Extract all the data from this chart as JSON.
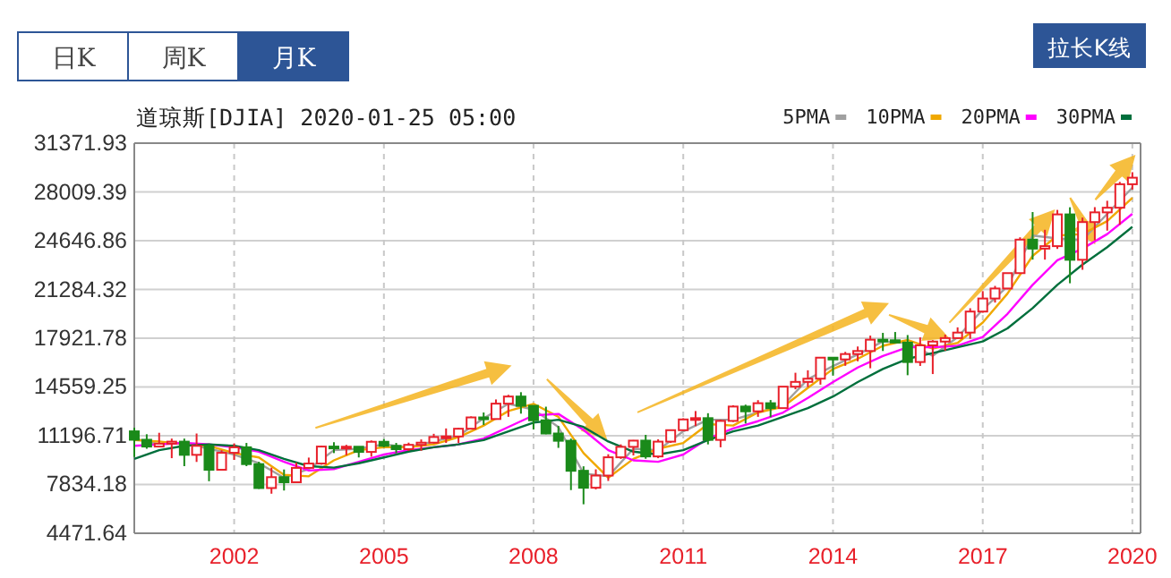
{
  "chart_data": {
    "type": "candlestick",
    "title": "道琼斯[DJIA] 2020-01-25 05:00",
    "annotations": [
      "日K",
      "周K",
      "月K",
      "拉长K线"
    ],
    "x": [
      "2000-01",
      "2000-04",
      "2000-07",
      "2000-10",
      "2001-01",
      "2001-04",
      "2001-07",
      "2001-10",
      "2002-01",
      "2002-04",
      "2002-07",
      "2002-10",
      "2003-01",
      "2003-04",
      "2003-07",
      "2003-10",
      "2004-01",
      "2004-04",
      "2004-07",
      "2004-10",
      "2005-01",
      "2005-04",
      "2005-07",
      "2005-10",
      "2006-01",
      "2006-04",
      "2006-07",
      "2006-10",
      "2007-01",
      "2007-04",
      "2007-07",
      "2007-10",
      "2008-01",
      "2008-04",
      "2008-07",
      "2008-10",
      "2009-01",
      "2009-04",
      "2009-07",
      "2009-10",
      "2010-01",
      "2010-04",
      "2010-07",
      "2010-10",
      "2011-01",
      "2011-04",
      "2011-07",
      "2011-10",
      "2012-01",
      "2012-04",
      "2012-07",
      "2012-10",
      "2013-01",
      "2013-04",
      "2013-07",
      "2013-10",
      "2014-01",
      "2014-04",
      "2014-07",
      "2014-10",
      "2015-01",
      "2015-04",
      "2015-07",
      "2015-10",
      "2016-01",
      "2016-04",
      "2016-07",
      "2016-10",
      "2017-01",
      "2017-04",
      "2017-07",
      "2017-10",
      "2018-01",
      "2018-04",
      "2018-07",
      "2018-10",
      "2019-01",
      "2019-04",
      "2019-07",
      "2019-10",
      "2020-01"
    ],
    "ohlc": [
      [
        11500,
        11750,
        9730,
        10920
      ],
      [
        10920,
        11300,
        10300,
        10450
      ],
      [
        10450,
        11400,
        10400,
        10650
      ],
      [
        10650,
        11000,
        9650,
        10790
      ],
      [
        10790,
        11000,
        9100,
        9880
      ],
      [
        9880,
        11350,
        9390,
        10500
      ],
      [
        10500,
        10650,
        8060,
        8850
      ],
      [
        8850,
        10200,
        8800,
        10020
      ],
      [
        10020,
        10670,
        9530,
        10400
      ],
      [
        10400,
        10700,
        9100,
        9240
      ],
      [
        9240,
        9400,
        7530,
        7590
      ],
      [
        7590,
        9000,
        7200,
        8340
      ],
      [
        8340,
        8870,
        7420,
        7990
      ],
      [
        7990,
        9350,
        7990,
        8980
      ],
      [
        8980,
        9690,
        8980,
        9280
      ],
      [
        9280,
        10500,
        9200,
        10450
      ],
      [
        10450,
        10750,
        10000,
        10360
      ],
      [
        10360,
        10570,
        9850,
        10440
      ],
      [
        10440,
        10450,
        9700,
        10080
      ],
      [
        10080,
        10870,
        9750,
        10780
      ],
      [
        10780,
        10980,
        10400,
        10500
      ],
      [
        10500,
        10700,
        10000,
        10270
      ],
      [
        10270,
        10720,
        10150,
        10570
      ],
      [
        10570,
        10940,
        10160,
        10720
      ],
      [
        10720,
        11330,
        10660,
        11110
      ],
      [
        11110,
        11700,
        10700,
        11150
      ],
      [
        11150,
        11730,
        10700,
        11680
      ],
      [
        11680,
        12530,
        11670,
        12460
      ],
      [
        12460,
        12800,
        11940,
        12350
      ],
      [
        12350,
        13700,
        12300,
        13410
      ],
      [
        13410,
        14020,
        12500,
        13900
      ],
      [
        13900,
        14200,
        12720,
        13260
      ],
      [
        13260,
        13280,
        11630,
        12260
      ],
      [
        12260,
        13200,
        11300,
        11350
      ],
      [
        11350,
        11870,
        10360,
        10850
      ],
      [
        10850,
        11000,
        7450,
        8780
      ],
      [
        8780,
        9090,
        6470,
        7610
      ],
      [
        7610,
        8880,
        7500,
        8450
      ],
      [
        8450,
        9920,
        8080,
        9710
      ],
      [
        9710,
        10600,
        9600,
        10430
      ],
      [
        10430,
        10900,
        9840,
        10860
      ],
      [
        10860,
        11260,
        9610,
        9770
      ],
      [
        9770,
        10950,
        9650,
        10790
      ],
      [
        10790,
        11600,
        10700,
        11580
      ],
      [
        11580,
        12400,
        11550,
        12320
      ],
      [
        12320,
        12900,
        11860,
        12410
      ],
      [
        12410,
        12750,
        10600,
        10910
      ],
      [
        10910,
        12300,
        10400,
        12220
      ],
      [
        12220,
        13300,
        12150,
        13210
      ],
      [
        13210,
        13340,
        12040,
        12880
      ],
      [
        12880,
        13650,
        12500,
        13440
      ],
      [
        13440,
        13660,
        12470,
        13100
      ],
      [
        13100,
        14580,
        13100,
        14580
      ],
      [
        14580,
        15540,
        14400,
        14910
      ],
      [
        14910,
        15710,
        14550,
        15130
      ],
      [
        15130,
        16590,
        14720,
        16580
      ],
      [
        16580,
        16590,
        15340,
        16460
      ],
      [
        16460,
        16980,
        16020,
        16830
      ],
      [
        16830,
        17350,
        16330,
        17040
      ],
      [
        17040,
        18100,
        15850,
        17820
      ],
      [
        17820,
        18290,
        17040,
        17780
      ],
      [
        17780,
        18350,
        17590,
        17620
      ],
      [
        17620,
        18140,
        15370,
        16280
      ],
      [
        16280,
        17980,
        16010,
        17430
      ],
      [
        17430,
        17790,
        15450,
        17690
      ],
      [
        17690,
        18170,
        17060,
        17930
      ],
      [
        17930,
        18670,
        17890,
        18310
      ],
      [
        18310,
        19990,
        17880,
        19760
      ],
      [
        19760,
        21170,
        19680,
        20660
      ],
      [
        20660,
        21530,
        20380,
        21350
      ],
      [
        21350,
        22420,
        21300,
        22410
      ],
      [
        22410,
        24880,
        22400,
        24720
      ],
      [
        24720,
        26620,
        23340,
        24100
      ],
      [
        24100,
        25400,
        23340,
        24270
      ],
      [
        24270,
        26770,
        24080,
        26460
      ],
      [
        26460,
        26950,
        21710,
        23330
      ],
      [
        23330,
        26240,
        22640,
        25930
      ],
      [
        25930,
        26960,
        24680,
        26600
      ],
      [
        26600,
        27400,
        25340,
        26920
      ],
      [
        26920,
        28700,
        25740,
        28540
      ],
      [
        28540,
        29370,
        28170,
        28990
      ]
    ],
    "series": [
      {
        "name": "5PMA",
        "type": "line",
        "color": "#a0a0a0",
        "x": [
          "2000-01",
          "2000-07",
          "2001-01",
          "2001-07",
          "2002-01",
          "2002-07",
          "2003-01",
          "2003-07",
          "2004-01",
          "2004-07",
          "2005-01",
          "2005-07",
          "2006-01",
          "2006-07",
          "2007-01",
          "2007-07",
          "2008-01",
          "2008-07",
          "2009-01",
          "2009-07",
          "2010-01",
          "2010-07",
          "2011-01",
          "2011-07",
          "2012-01",
          "2012-07",
          "2013-01",
          "2013-07",
          "2014-01",
          "2014-07",
          "2015-01",
          "2015-07",
          "2016-01",
          "2016-07",
          "2017-01",
          "2017-07",
          "2018-01",
          "2018-07",
          "2019-01",
          "2019-07",
          "2020-01"
        ],
        "values": [
          11000,
          10600,
          10700,
          10300,
          9900,
          9300,
          8300,
          8900,
          10200,
          10300,
          10600,
          10400,
          10800,
          11200,
          12400,
          13400,
          13000,
          11800,
          8600,
          8400,
          10300,
          10200,
          11500,
          12300,
          12300,
          12800,
          13300,
          15100,
          16000,
          16800,
          17700,
          17600,
          16700,
          18000,
          19900,
          21500,
          25000,
          24800,
          24700,
          26500,
          28300
        ]
      },
      {
        "name": "10PMA",
        "type": "line",
        "color": "#f0a800",
        "x": [
          "2000-01",
          "2000-07",
          "2001-01",
          "2001-07",
          "2002-01",
          "2002-07",
          "2003-01",
          "2003-07",
          "2004-01",
          "2004-07",
          "2005-01",
          "2005-07",
          "2006-01",
          "2006-07",
          "2007-01",
          "2007-07",
          "2008-01",
          "2008-07",
          "2009-01",
          "2009-07",
          "2010-01",
          "2010-07",
          "2011-01",
          "2011-07",
          "2012-01",
          "2012-07",
          "2013-01",
          "2013-07",
          "2014-01",
          "2014-07",
          "2015-01",
          "2015-07",
          "2016-01",
          "2016-07",
          "2017-01",
          "2017-07",
          "2018-01",
          "2018-07",
          "2019-01",
          "2019-07",
          "2020-01"
        ],
        "values": [
          10900,
          10800,
          10600,
          10500,
          10000,
          9700,
          8500,
          8400,
          9500,
          10200,
          10400,
          10400,
          10600,
          11100,
          11900,
          12900,
          13400,
          12500,
          10000,
          8300,
          9600,
          10300,
          10700,
          12000,
          11900,
          12800,
          13200,
          14500,
          15800,
          16500,
          17400,
          17800,
          17200,
          17600,
          19000,
          21000,
          23600,
          25000,
          25100,
          26000,
          27600
        ]
      },
      {
        "name": "20PMA",
        "type": "line",
        "color": "#ff00ff",
        "x": [
          "2000-01",
          "2000-07",
          "2001-01",
          "2001-07",
          "2002-01",
          "2002-07",
          "2003-01",
          "2003-07",
          "2004-01",
          "2004-07",
          "2005-01",
          "2005-07",
          "2006-01",
          "2006-07",
          "2007-01",
          "2007-07",
          "2008-01",
          "2008-07",
          "2009-01",
          "2009-07",
          "2010-01",
          "2010-07",
          "2011-01",
          "2011-07",
          "2012-01",
          "2012-07",
          "2013-01",
          "2013-07",
          "2014-01",
          "2014-07",
          "2015-01",
          "2015-07",
          "2016-01",
          "2016-07",
          "2017-01",
          "2017-07",
          "2018-01",
          "2018-07",
          "2019-01",
          "2019-07",
          "2020-01"
        ],
        "values": [
          10500,
          10600,
          10700,
          10600,
          10400,
          10100,
          9400,
          8800,
          8900,
          9400,
          9900,
          10200,
          10400,
          10600,
          11000,
          11800,
          12600,
          12700,
          11600,
          10200,
          9500,
          9400,
          9900,
          11000,
          11700,
          12200,
          12800,
          13800,
          14900,
          15900,
          16700,
          17300,
          17300,
          17400,
          18000,
          19600,
          21600,
          23300,
          24100,
          25100,
          26500
        ]
      },
      {
        "name": "30PMA",
        "type": "line",
        "color": "#006f3c",
        "x": [
          "2000-01",
          "2000-07",
          "2001-01",
          "2001-07",
          "2002-01",
          "2002-07",
          "2003-01",
          "2003-07",
          "2004-01",
          "2004-07",
          "2005-01",
          "2005-07",
          "2006-01",
          "2006-07",
          "2007-01",
          "2007-07",
          "2008-01",
          "2008-07",
          "2009-01",
          "2009-07",
          "2010-01",
          "2010-07",
          "2011-01",
          "2011-07",
          "2012-01",
          "2012-07",
          "2013-01",
          "2013-07",
          "2014-01",
          "2014-07",
          "2015-01",
          "2015-07",
          "2016-01",
          "2016-07",
          "2017-01",
          "2017-07",
          "2018-01",
          "2018-07",
          "2019-01",
          "2019-07",
          "2020-01"
        ],
        "values": [
          9600,
          10200,
          10500,
          10600,
          10500,
          10200,
          9600,
          9100,
          9000,
          9300,
          9700,
          10100,
          10400,
          10600,
          10900,
          11500,
          12100,
          12300,
          11800,
          10800,
          10100,
          9900,
          10200,
          10900,
          11500,
          11900,
          12500,
          13100,
          13900,
          14900,
          15800,
          16500,
          16900,
          17300,
          17700,
          18600,
          20000,
          21600,
          23000,
          24200,
          25600
        ]
      }
    ],
    "xlim": [
      "2000-01-01",
      "2020-03-01"
    ],
    "xticks": [
      {
        "value": "2002-01-01",
        "label": "2002"
      },
      {
        "value": "2005-01-01",
        "label": "2005"
      },
      {
        "value": "2008-01-01",
        "label": "2008"
      },
      {
        "value": "2011-01-01",
        "label": "2011"
      },
      {
        "value": "2014-01-01",
        "label": "2014"
      },
      {
        "value": "2017-01-01",
        "label": "2017"
      },
      {
        "value": "2020-01-01",
        "label": "2020"
      }
    ],
    "ylim": [
      4471.64,
      31371.93
    ],
    "yticks": [
      4471.64,
      7834.18,
      11196.71,
      14559.25,
      17921.78,
      21284.32,
      24646.86,
      28009.39,
      31371.93
    ],
    "grid": true,
    "legend": "top right"
  }
}
